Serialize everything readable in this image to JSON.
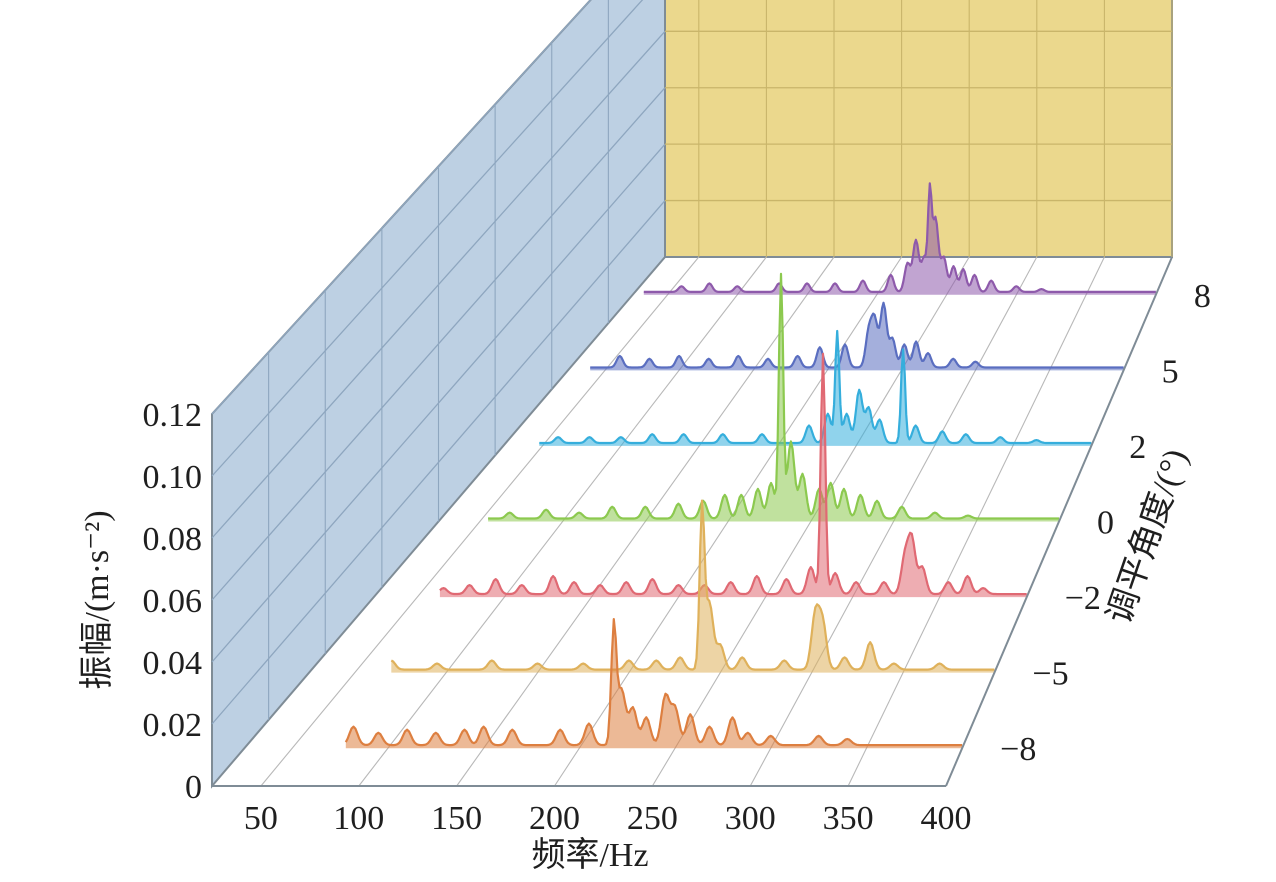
{
  "chart_data": {
    "type": "line",
    "subtype": "3d-waterfall-spectrum",
    "xlabel": "频率/Hz",
    "ylabel": "振幅/(m·s⁻²)",
    "zlabel": "调平角度/(°)",
    "x_ticks": [
      "50",
      "100",
      "150",
      "200",
      "250",
      "300",
      "350",
      "400"
    ],
    "y_ticks": [
      "0",
      "0.02",
      "0.04",
      "0.06",
      "0.08",
      "0.10",
      "0.12"
    ],
    "z_ticks": [
      "−8",
      "−5",
      "−2",
      "0",
      "2",
      "5",
      "8"
    ],
    "x_range": [
      25,
      400
    ],
    "ylim": [
      0,
      0.12
    ],
    "baseline": 0.001,
    "colors": {
      "left_wall": "#bdd0e3",
      "back_wall": "#ebd88d",
      "grid_on_walls": "#8ea6bf",
      "grid_on_back": "#c9b56a",
      "floor_grid": "#b8b8b8",
      "frame": "#7f8c96"
    },
    "series": [
      {
        "name": "−8",
        "color": "#dd7f40",
        "peaks": [
          [
            55,
            0.004
          ],
          [
            70,
            0.005
          ],
          [
            82,
            0.006
          ],
          [
            95,
            0.004
          ],
          [
            110,
            0.005
          ],
          [
            125,
            0.004
          ],
          [
            140,
            0.005
          ],
          [
            150,
            0.006
          ],
          [
            165,
            0.005
          ],
          [
            190,
            0.005
          ],
          [
            205,
            0.007
          ],
          [
            218,
            0.038
          ],
          [
            222,
            0.018
          ],
          [
            228,
            0.012
          ],
          [
            235,
            0.009
          ],
          [
            245,
            0.016
          ],
          [
            250,
            0.012
          ],
          [
            258,
            0.01
          ],
          [
            268,
            0.006
          ],
          [
            280,
            0.009
          ],
          [
            288,
            0.004
          ],
          [
            300,
            0.003
          ],
          [
            325,
            0.003
          ],
          [
            340,
            0.002
          ]
        ]
      },
      {
        "name": "−5",
        "color": "#dfb15b",
        "peaks": [
          [
            70,
            0.003
          ],
          [
            95,
            0.002
          ],
          [
            125,
            0.003
          ],
          [
            150,
            0.002
          ],
          [
            175,
            0.002
          ],
          [
            200,
            0.003
          ],
          [
            215,
            0.003
          ],
          [
            228,
            0.004
          ],
          [
            240,
            0.052
          ],
          [
            244,
            0.022
          ],
          [
            250,
            0.008
          ],
          [
            262,
            0.004
          ],
          [
            285,
            0.003
          ],
          [
            302,
            0.018
          ],
          [
            306,
            0.015
          ],
          [
            318,
            0.004
          ],
          [
            332,
            0.009
          ],
          [
            345,
            0.002
          ],
          [
            370,
            0.002
          ]
        ]
      },
      {
        "name": "−2",
        "color": "#e06973",
        "peaks": [
          [
            65,
            0.002
          ],
          [
            80,
            0.003
          ],
          [
            95,
            0.005
          ],
          [
            110,
            0.003
          ],
          [
            128,
            0.006
          ],
          [
            140,
            0.004
          ],
          [
            155,
            0.003
          ],
          [
            170,
            0.004
          ],
          [
            185,
            0.005
          ],
          [
            200,
            0.003
          ],
          [
            215,
            0.003
          ],
          [
            230,
            0.004
          ],
          [
            245,
            0.006
          ],
          [
            262,
            0.005
          ],
          [
            276,
            0.009
          ],
          [
            283,
            0.08
          ],
          [
            290,
            0.007
          ],
          [
            302,
            0.004
          ],
          [
            318,
            0.004
          ],
          [
            330,
            0.012
          ],
          [
            334,
            0.018
          ],
          [
            340,
            0.009
          ],
          [
            355,
            0.004
          ],
          [
            366,
            0.006
          ],
          [
            375,
            0.002
          ]
        ]
      },
      {
        "name": "0",
        "color": "#8cc94f",
        "peaks": [
          [
            50,
            0.001
          ],
          [
            68,
            0.002
          ],
          [
            90,
            0.003
          ],
          [
            110,
            0.002
          ],
          [
            130,
            0.004
          ],
          [
            150,
            0.004
          ],
          [
            170,
            0.005
          ],
          [
            185,
            0.006
          ],
          [
            198,
            0.008
          ],
          [
            208,
            0.008
          ],
          [
            218,
            0.01
          ],
          [
            226,
            0.012
          ],
          [
            232,
            0.082
          ],
          [
            238,
            0.026
          ],
          [
            245,
            0.015
          ],
          [
            255,
            0.01
          ],
          [
            262,
            0.012
          ],
          [
            270,
            0.01
          ],
          [
            280,
            0.008
          ],
          [
            290,
            0.006
          ],
          [
            305,
            0.004
          ],
          [
            325,
            0.002
          ],
          [
            345,
            0.001
          ]
        ]
      },
      {
        "name": "2",
        "color": "#35aedc",
        "peaks": [
          [
            40,
            0.004
          ],
          [
            60,
            0.002
          ],
          [
            80,
            0.002
          ],
          [
            100,
            0.002
          ],
          [
            120,
            0.003
          ],
          [
            140,
            0.003
          ],
          [
            165,
            0.003
          ],
          [
            190,
            0.003
          ],
          [
            220,
            0.006
          ],
          [
            232,
            0.01
          ],
          [
            238,
            0.038
          ],
          [
            244,
            0.01
          ],
          [
            252,
            0.018
          ],
          [
            258,
            0.012
          ],
          [
            265,
            0.008
          ],
          [
            280,
            0.032
          ],
          [
            288,
            0.006
          ],
          [
            305,
            0.004
          ],
          [
            320,
            0.003
          ],
          [
            342,
            0.002
          ],
          [
            365,
            0.001
          ]
        ]
      },
      {
        "name": "5",
        "color": "#5a6ec0",
        "peaks": [
          [
            60,
            0.004
          ],
          [
            80,
            0.003
          ],
          [
            100,
            0.004
          ],
          [
            120,
            0.003
          ],
          [
            140,
            0.004
          ],
          [
            160,
            0.003
          ],
          [
            180,
            0.004
          ],
          [
            195,
            0.007
          ],
          [
            212,
            0.008
          ],
          [
            228,
            0.012
          ],
          [
            232,
            0.016
          ],
          [
            238,
            0.022
          ],
          [
            244,
            0.01
          ],
          [
            252,
            0.008
          ],
          [
            260,
            0.009
          ],
          [
            268,
            0.005
          ],
          [
            285,
            0.003
          ],
          [
            300,
            0.002
          ]
        ]
      },
      {
        "name": "8",
        "color": "#8e5aab",
        "peaks": [
          [
            60,
            0.002
          ],
          [
            80,
            0.003
          ],
          [
            100,
            0.002
          ],
          [
            130,
            0.003
          ],
          [
            150,
            0.003
          ],
          [
            170,
            0.003
          ],
          [
            190,
            0.004
          ],
          [
            210,
            0.006
          ],
          [
            222,
            0.01
          ],
          [
            228,
            0.018
          ],
          [
            234,
            0.012
          ],
          [
            238,
            0.032
          ],
          [
            242,
            0.026
          ],
          [
            248,
            0.012
          ],
          [
            255,
            0.009
          ],
          [
            262,
            0.008
          ],
          [
            270,
            0.006
          ],
          [
            282,
            0.004
          ],
          [
            300,
            0.002
          ],
          [
            318,
            0.001
          ]
        ]
      }
    ]
  }
}
